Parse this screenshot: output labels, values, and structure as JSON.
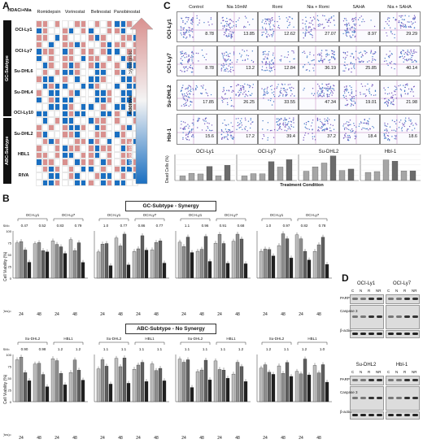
{
  "panels": {
    "a": "A",
    "b": "B",
    "c": "C",
    "d": "D"
  },
  "panelA": {
    "corner": "HDACi+Nia",
    "drugs": [
      "Romidepsin",
      "Vorinostat",
      "Belinostat",
      "Panobinostat"
    ],
    "subtypes": [
      "GC-Subtype",
      "ABC-Subtype"
    ],
    "cell_lines": [
      "OCI-Ly1",
      "OCI-Ly7",
      "Su-DHL6",
      "Su-DHL4",
      "OCI-Ly10",
      "Su-DHL2",
      "HBL1",
      "RIVA"
    ],
    "scale": {
      "top": "Synergistic",
      "mid": "Additive",
      "bottom": "Antagonistic"
    },
    "colors": {
      "synergy": "#d9918f",
      "additive": "#ffffff",
      "antagonism": "#1a6fc1"
    }
  },
  "panelB": {
    "gc_banner": "GC-Subtype - Synergy",
    "abc_banner": "ABC-Subtype - No Synergy",
    "ylabel": "Cell Viability (%)",
    "rsm": "RSM=",
    "timepoint_label": "Time point (hrs)=",
    "timepoints": [
      "24",
      "48"
    ],
    "gc_groups": [
      {
        "lines": [
          "OCI-Ly1",
          "OCI-Ly7"
        ],
        "rsm": [
          "0.47",
          "0.52",
          "0.83",
          "0.79"
        ]
      },
      {
        "lines": [
          "OCI-Ly1",
          "OCI-Ly7"
        ],
        "rsm": [
          "1.0",
          "0.77",
          "0.86",
          "0.77"
        ]
      },
      {
        "lines": [
          "OCI-Ly1",
          "OCI-Ly7"
        ],
        "rsm": [
          "1.1",
          "0.96",
          "0.91",
          "0.68"
        ]
      },
      {
        "lines": [
          "OCI-Ly1",
          "OCI-Ly7"
        ],
        "rsm": [
          "1.0",
          "0.97",
          "0.82",
          "0.78"
        ]
      }
    ],
    "abc_groups": [
      {
        "lines": [
          "Su-DHL2",
          "HBL1"
        ],
        "rsm": [
          "0.90",
          "0.98",
          "1.2",
          "1.2"
        ]
      },
      {
        "lines": [
          "Su-DHL2",
          "HBL1"
        ],
        "rsm": [
          "1.1",
          "1.1",
          "1.1",
          "1.1"
        ]
      },
      {
        "lines": [
          "Su-DHL2",
          "HBL1"
        ],
        "rsm": [
          "1.1",
          "1.1",
          "1.1",
          "1.2"
        ]
      },
      {
        "lines": [
          "Su-DHL2",
          "HBL1"
        ],
        "rsm": [
          "1.2",
          "1.1",
          "1.2",
          "1.0"
        ]
      }
    ],
    "axis_ticks": [
      "100",
      "75",
      "50",
      "25",
      "0"
    ]
  },
  "panelC": {
    "conditions": [
      "Control",
      "Nia 10mM",
      "Romi",
      "Nia + Romi",
      "SAHA",
      "Nia + SAHA"
    ],
    "rows": [
      {
        "line": "OCI-Ly1",
        "values": [
          "8.78",
          "13.85",
          "12.62",
          "27.07",
          "8.97",
          "29.29"
        ]
      },
      {
        "line": "OCI-Ly7",
        "values": [
          "8.78",
          "13.2",
          "12.84",
          "36.19",
          "25.85",
          "40.14"
        ]
      },
      {
        "line": "Su-DHL2",
        "values": [
          "17.85",
          "26.25",
          "33.55",
          "47.34",
          "19.01",
          "21.98"
        ]
      },
      {
        "line": "Hbl-1",
        "values": [
          "15.6",
          "17.2",
          "39.4",
          "37.2",
          "18.4",
          "18.6"
        ]
      }
    ],
    "bar_ylabel": "Dead Cells (%)",
    "bar_xlabel": "Treatment Condition",
    "bar_titles": [
      "OCI-Ly1",
      "OCI-Ly7",
      "Su-DHL2",
      "Hbl-1"
    ],
    "bar_ticks": [
      "50",
      "40",
      "30",
      "20",
      "10",
      "0"
    ]
  },
  "chart_data": [
    {
      "type": "bar",
      "title": "OCI-Ly1",
      "ylabel": "Dead Cells (%)",
      "xlabel": "Treatment Condition",
      "values": [
        8.8,
        13.9,
        12.6,
        27.1,
        9.0,
        29.3
      ],
      "ylim": [
        0,
        50
      ]
    },
    {
      "type": "bar",
      "title": "OCI-Ly7",
      "values": [
        8.8,
        13.2,
        12.8,
        36.2,
        25.9,
        40.1
      ],
      "ylim": [
        0,
        50
      ]
    },
    {
      "type": "bar",
      "title": "Su-DHL2",
      "values": [
        17.9,
        26.3,
        33.6,
        47.3,
        19.0,
        22.0
      ],
      "ylim": [
        0,
        50
      ]
    },
    {
      "type": "bar",
      "title": "Hbl-1",
      "values": [
        15.6,
        17.2,
        39.4,
        37.2,
        18.4,
        18.6
      ],
      "ylim": [
        0,
        50
      ]
    }
  ],
  "panelD": {
    "top_lines": [
      "OCI-Ly1",
      "OCI-Ly7"
    ],
    "bottom_lines": [
      "Su-DHL2",
      "Hbl-1"
    ],
    "lanes": [
      "C",
      "N",
      "R",
      "NR"
    ],
    "proteins": [
      "PARP",
      "Caspase 3",
      "β-actin"
    ]
  }
}
